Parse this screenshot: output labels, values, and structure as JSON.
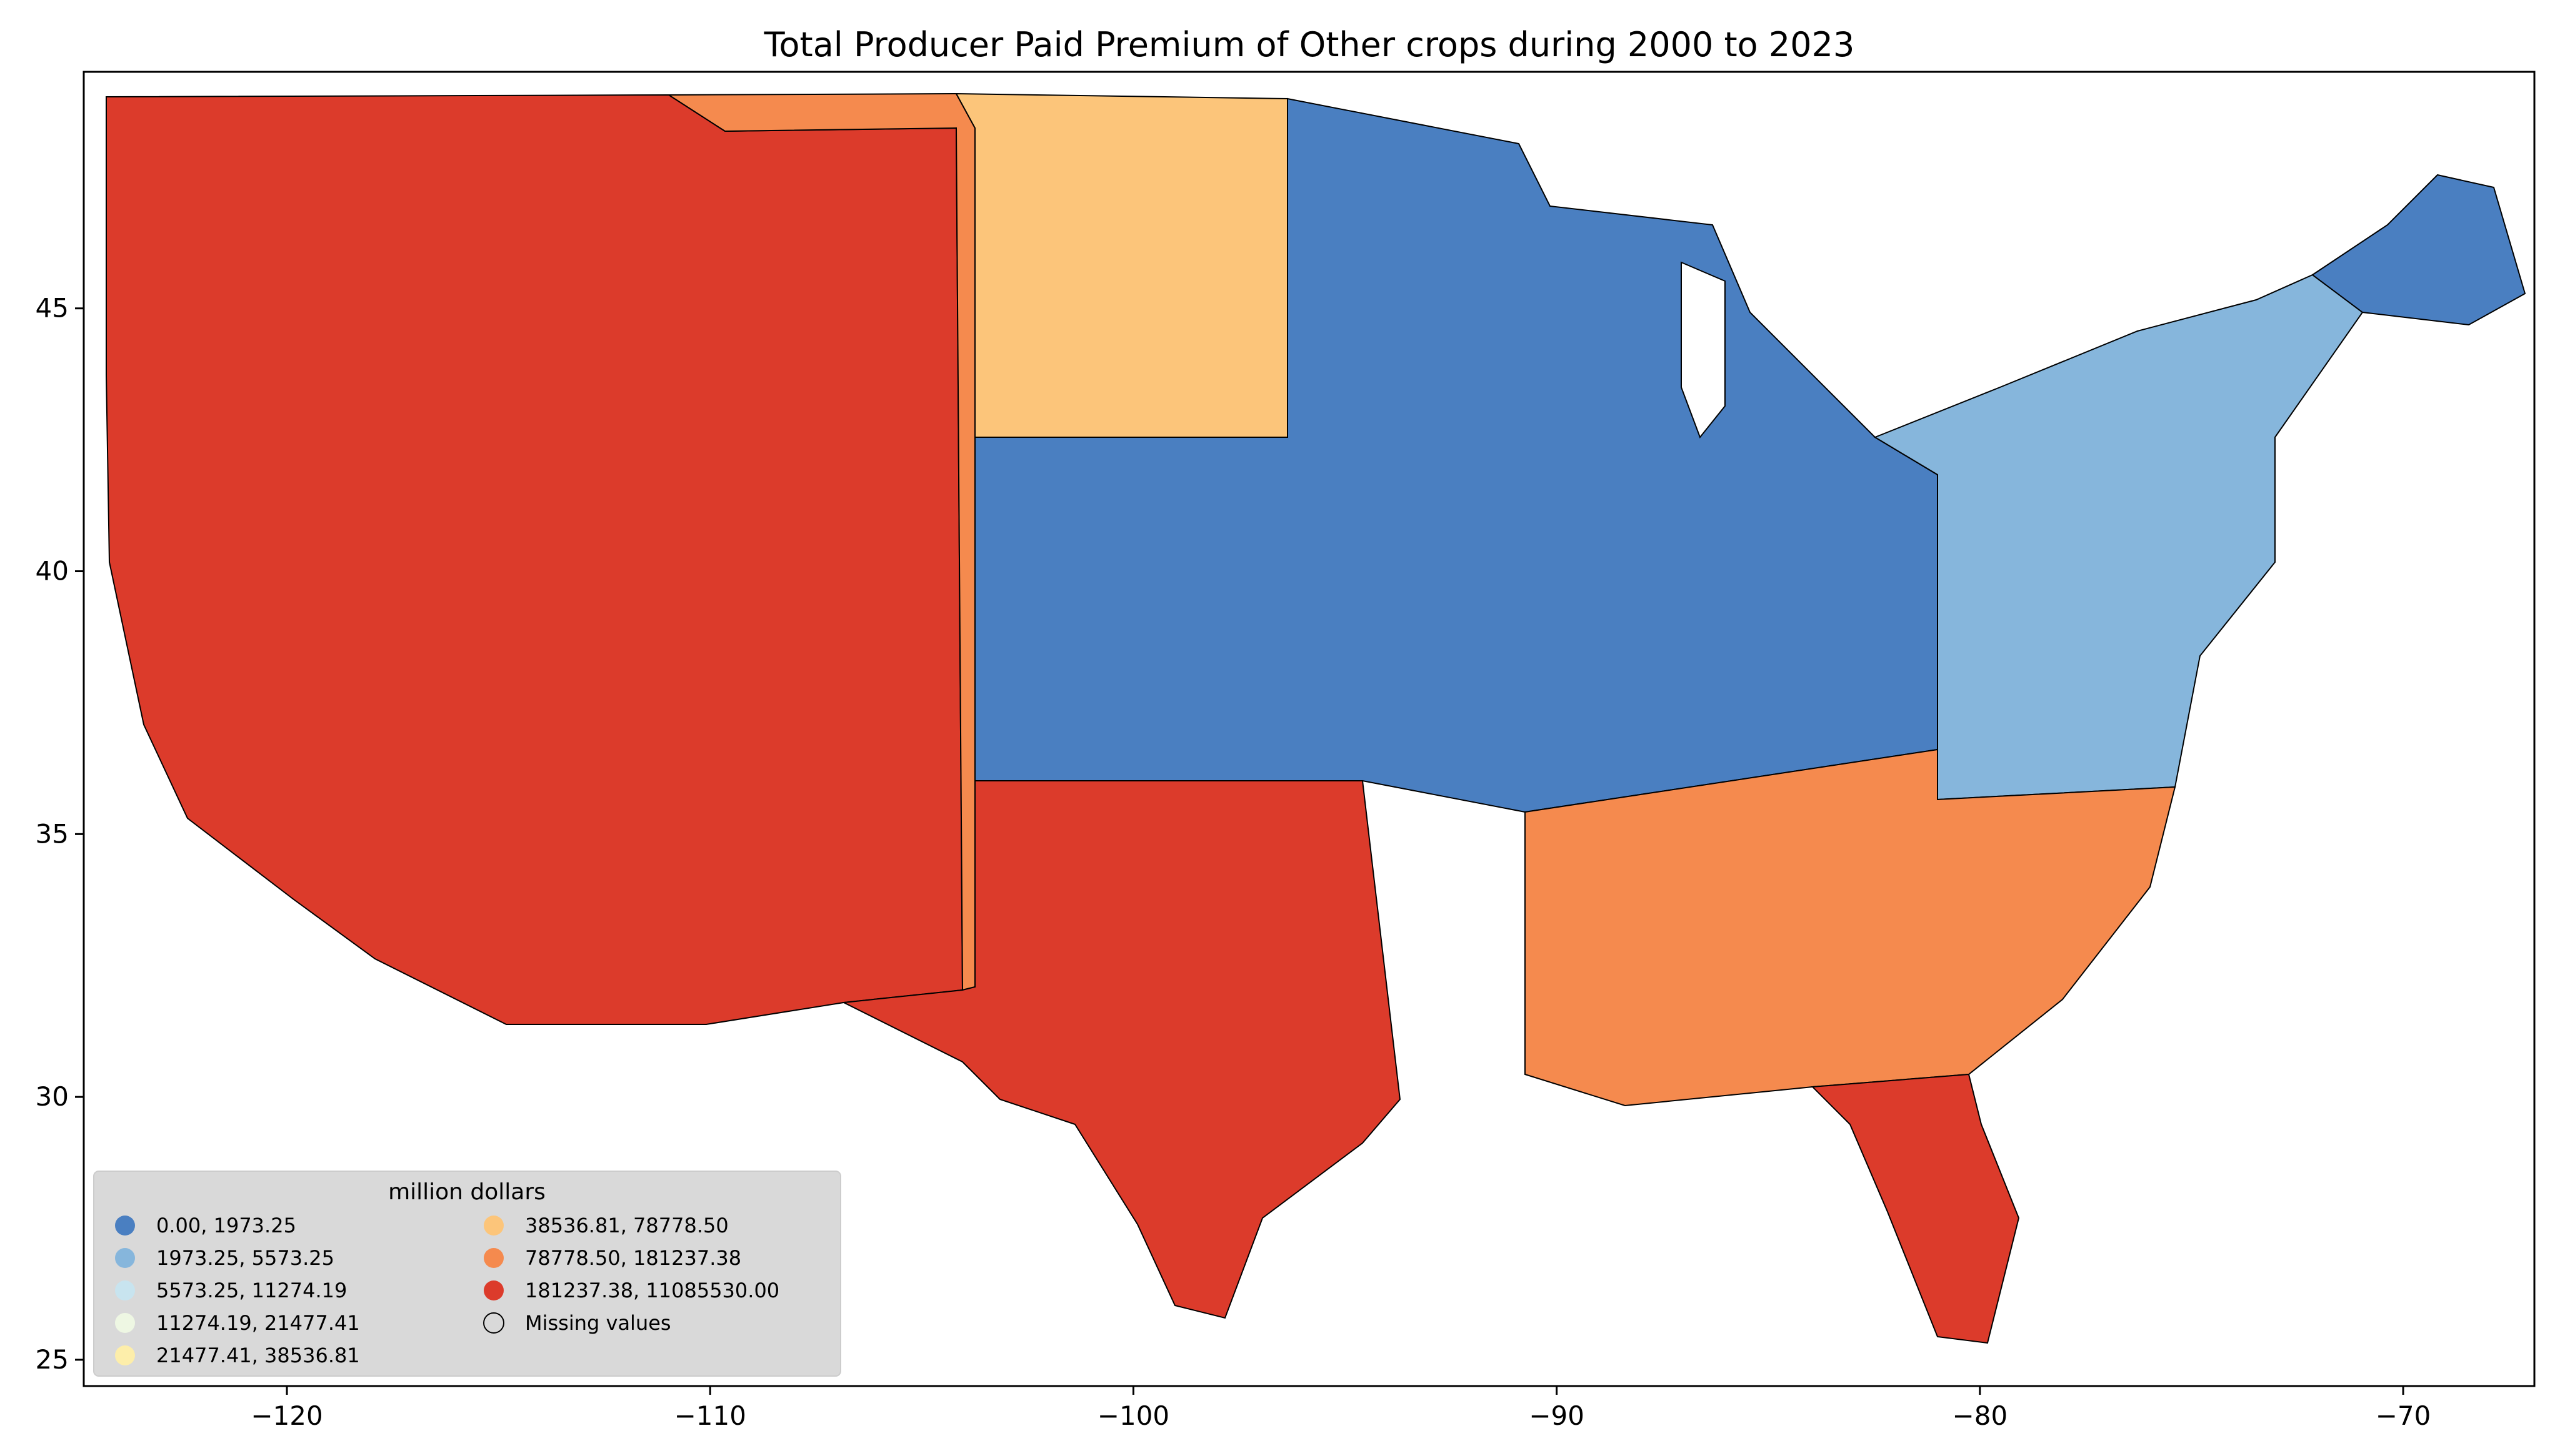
{
  "title": "Total Producer Paid Premium of Other crops during 2000 to 2023",
  "axes": {
    "x_ticks": [
      {
        "value": -120,
        "label": "−120"
      },
      {
        "value": -110,
        "label": "−110"
      },
      {
        "value": -100,
        "label": "−100"
      },
      {
        "value": -90,
        "label": "−90"
      },
      {
        "value": -80,
        "label": "−80"
      },
      {
        "value": -70,
        "label": "−70"
      }
    ],
    "y_ticks": [
      {
        "value": 25,
        "label": "25"
      },
      {
        "value": 30,
        "label": "30"
      },
      {
        "value": 35,
        "label": "35"
      },
      {
        "value": 40,
        "label": "40"
      },
      {
        "value": 45,
        "label": "45"
      }
    ],
    "xlim": [
      -124.8,
      -66.9
    ],
    "ylim": [
      24.5,
      49.5
    ]
  },
  "legend": {
    "title": "million dollars",
    "placement": "lower-left",
    "items": [
      {
        "label": "0.00,     1973.25",
        "color": "#4a7fc1"
      },
      {
        "label": "1973.25,     5573.25",
        "color": "#86b6dc"
      },
      {
        "label": "5573.25,    11274.19",
        "color": "#c8e4ef"
      },
      {
        "label": "11274.19,    21477.41",
        "color": "#eef7e3"
      },
      {
        "label": "21477.41,    38536.81",
        "color": "#fdeeaa"
      },
      {
        "label": "38536.81,    78778.50",
        "color": "#fcc57a"
      },
      {
        "label": "78778.50,   181237.38",
        "color": "#f58a4e"
      },
      {
        "label": "181237.38, 11085530.00",
        "color": "#dc3b2b"
      },
      {
        "label": "Missing values",
        "color": "#d3d3d3"
      }
    ]
  },
  "regions": {
    "west": "#dc3b2b",
    "mountain": "#f58a4e",
    "plains": "#fcc57a",
    "midwest": "#4a7fc1",
    "east": "#86b6dc",
    "southeast": "#f58a4e",
    "texas": "#dc3b2b",
    "florida": "#dc3b2b",
    "maine": "#4a7fc1"
  }
}
